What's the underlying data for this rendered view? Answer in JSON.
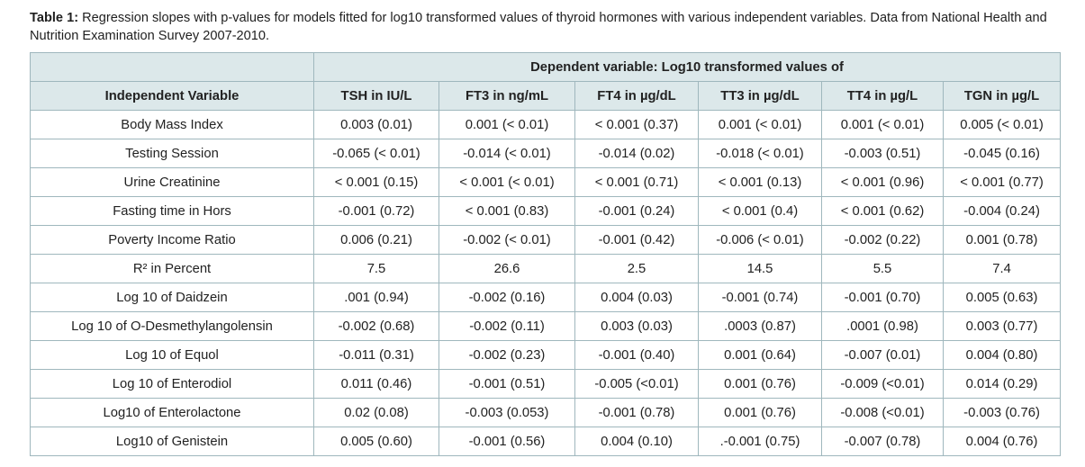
{
  "caption": {
    "label": "Table 1:",
    "text": " Regression slopes with p-values for models fitted for log10 transformed values of thyroid hormones with various independent variables. Data from National Health and Nutrition Examination Survey 2007-2010."
  },
  "table": {
    "group_header": "Dependent variable: Log10 transformed values of",
    "columns": [
      "Independent Variable",
      "TSH in IU/L",
      "FT3 in ng/mL",
      "FT4 in µg/dL",
      "TT3 in µg/dL",
      "TT4 in µg/L",
      "TGN in µg/L"
    ],
    "rows": [
      [
        "Body Mass Index",
        "0.003 (0.01)",
        "0.001 (< 0.01)",
        "< 0.001 (0.37)",
        "0.001 (< 0.01)",
        "0.001 (< 0.01)",
        "0.005 (< 0.01)"
      ],
      [
        "Testing Session",
        "-0.065 (< 0.01)",
        "-0.014 (< 0.01)",
        "-0.014 (0.02)",
        "-0.018 (< 0.01)",
        "-0.003 (0.51)",
        "-0.045 (0.16)"
      ],
      [
        "Urine Creatinine",
        "< 0.001 (0.15)",
        "< 0.001 (< 0.01)",
        "< 0.001 (0.71)",
        "< 0.001 (0.13)",
        "< 0.001 (0.96)",
        "< 0.001 (0.77)"
      ],
      [
        "Fasting time in Hors",
        "-0.001 (0.72)",
        "< 0.001 (0.83)",
        "-0.001 (0.24)",
        "< 0.001 (0.4)",
        "< 0.001 (0.62)",
        "-0.004 (0.24)"
      ],
      [
        "Poverty Income Ratio",
        "0.006 (0.21)",
        "-0.002 (< 0.01)",
        "-0.001 (0.42)",
        "-0.006 (< 0.01)",
        "-0.002 (0.22)",
        "0.001 (0.78)"
      ],
      [
        "R² in Percent",
        "7.5",
        "26.6",
        "2.5",
        "14.5",
        "5.5",
        "7.4"
      ],
      [
        "Log 10 of Daidzein",
        ".001 (0.94)",
        "-0.002 (0.16)",
        "0.004 (0.03)",
        "-0.001 (0.74)",
        "-0.001 (0.70)",
        "0.005 (0.63)"
      ],
      [
        "Log 10 of O-Desmethylangolensin",
        "-0.002 (0.68)",
        "-0.002 (0.11)",
        "0.003 (0.03)",
        ".0003 (0.87)",
        ".0001 (0.98)",
        "0.003 (0.77)"
      ],
      [
        "Log 10 of Equol",
        "-0.011 (0.31)",
        "-0.002 (0.23)",
        "-0.001 (0.40)",
        "0.001 (0.64)",
        "-0.007 (0.01)",
        "0.004 (0.80)"
      ],
      [
        "Log 10 of Enterodiol",
        "0.011 (0.46)",
        "-0.001 (0.51)",
        "-0.005 (<0.01)",
        "0.001 (0.76)",
        "-0.009 (<0.01)",
        "0.014 (0.29)"
      ],
      [
        "Log10 of Enterolactone",
        "0.02 (0.08)",
        "-0.003 (0.053)",
        "-0.001 (0.78)",
        "0.001 (0.76)",
        "-0.008 (<0.01)",
        "-0.003 (0.76)"
      ],
      [
        "Log10 of Genistein",
        "0.005 (0.60)",
        "-0.001 (0.56)",
        "0.004 (0.10)",
        ".-0.001 (0.75)",
        "-0.007 (0.78)",
        "0.004 (0.76)"
      ]
    ]
  }
}
